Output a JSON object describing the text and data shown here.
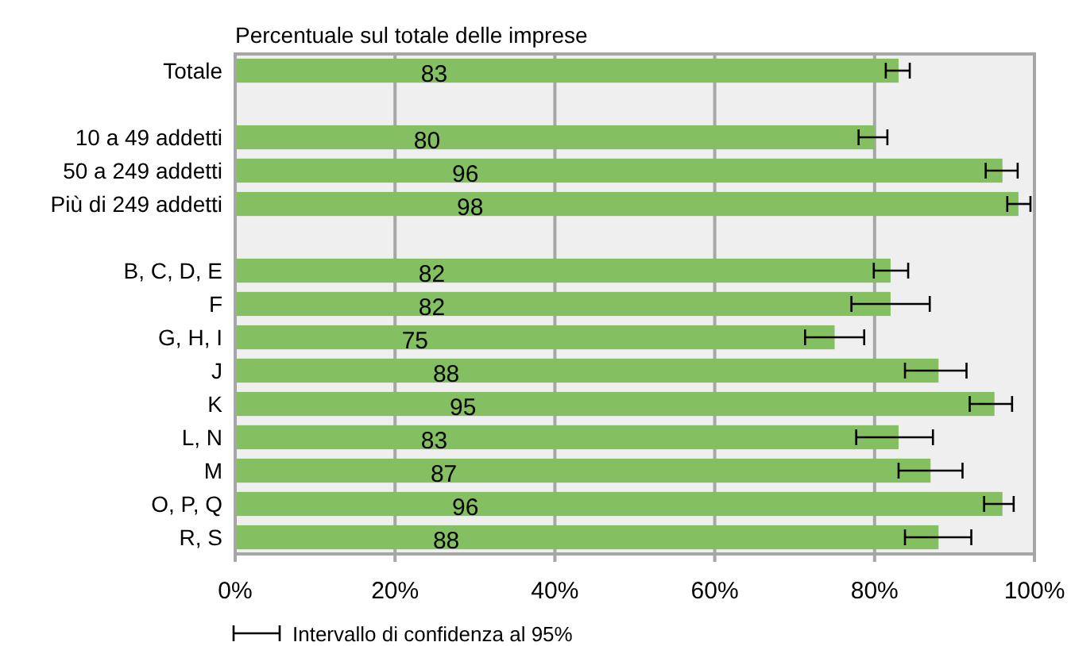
{
  "chart_data": {
    "type": "bar",
    "orientation": "horizontal",
    "subtitle": "Percentuale sul totale delle imprese",
    "categories": [
      "Totale",
      null,
      "10 a 49 addetti",
      "50 a 249 addetti",
      "Più di 249 addetti",
      null,
      "B, C, D, E",
      "F",
      "G, H, I",
      "J",
      "K",
      "L, N",
      "M",
      "O, P, Q",
      "R, S"
    ],
    "values": [
      83,
      null,
      80,
      96,
      98,
      null,
      82,
      82,
      75,
      88,
      95,
      83,
      87,
      96,
      88
    ],
    "errors": [
      [
        81.4,
        84.4
      ],
      null,
      [
        78,
        81.6
      ],
      [
        93.9,
        97.9
      ],
      [
        96.6,
        99.5
      ],
      null,
      [
        79.9,
        84.2
      ],
      [
        77.1,
        86.9
      ],
      [
        71.3,
        78.7
      ],
      [
        83.8,
        91.5
      ],
      [
        91.9,
        97.2
      ],
      [
        77.7,
        87.3
      ],
      [
        83,
        91
      ],
      [
        93.7,
        97.4
      ],
      [
        83.8,
        92.1
      ]
    ],
    "color": "#84c062",
    "data_labels": true,
    "xlim": [
      0,
      100
    ],
    "xticks": [
      {
        "value": 0,
        "label": "0%"
      },
      {
        "value": 20,
        "label": "20%"
      },
      {
        "value": 40,
        "label": "40%"
      },
      {
        "value": 60,
        "label": "60%"
      },
      {
        "value": 80,
        "label": "80%"
      },
      {
        "value": 100,
        "label": "100%"
      }
    ],
    "grid": "x",
    "annotations": [
      "Intervallo di confidenza al 95%"
    ]
  }
}
